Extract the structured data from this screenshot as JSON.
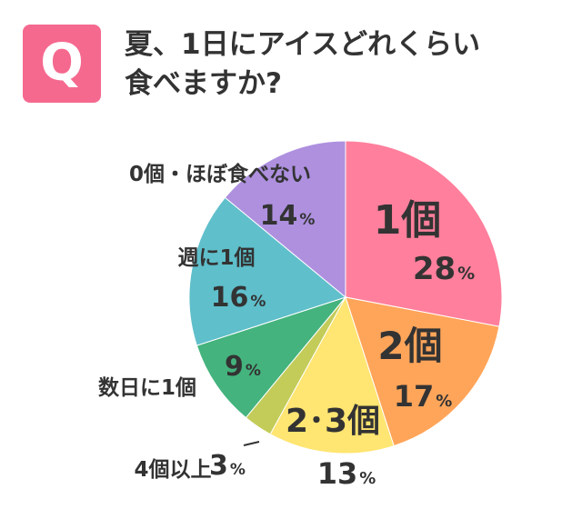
{
  "header": {
    "badge": "Q",
    "badge_color": "#f5698f",
    "title_line1": "夏、1日にアイスどれくらい",
    "title_line2": "食べますか?"
  },
  "chart_data": {
    "type": "pie",
    "title": "夏、1日にアイスどれくらい食べますか?",
    "unit": "%",
    "start": "12 o'clock",
    "direction": "clockwise",
    "slices": [
      {
        "label": "1個",
        "value": 28,
        "color": "#ff7f9c"
      },
      {
        "label": "2個",
        "value": 17,
        "color": "#ffa55a"
      },
      {
        "label": "2･3個",
        "value": 13,
        "color": "#ffe571"
      },
      {
        "label": "4個以上",
        "value": 3,
        "color": "#c3cc59"
      },
      {
        "label": "数日に1個",
        "value": 9,
        "color": "#44b37d"
      },
      {
        "label": "週に1個",
        "value": 16,
        "color": "#5fbfcb"
      },
      {
        "label": "0個・ほぼ食べない",
        "value": 14,
        "color": "#ae90df"
      }
    ]
  }
}
